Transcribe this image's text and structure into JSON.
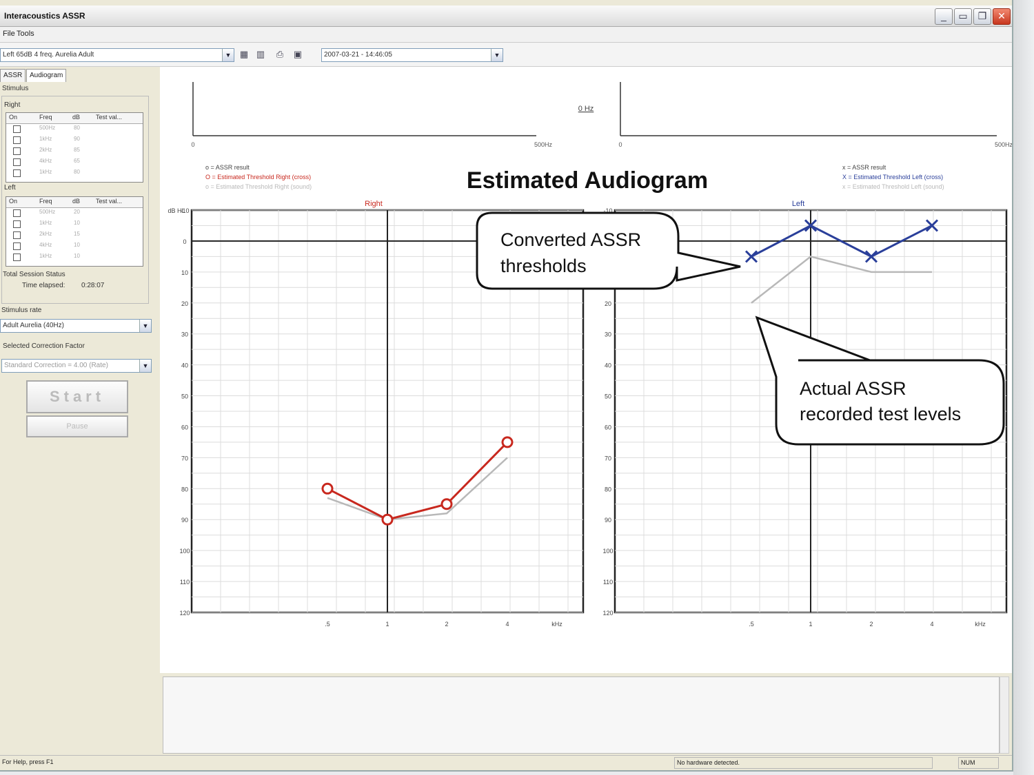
{
  "window": {
    "title": "Interacoustics ASSR",
    "buttons": [
      "minimize",
      "maximize",
      "restore",
      "close"
    ]
  },
  "menu": {
    "file": "File",
    "tools": "Tools"
  },
  "toolbar": {
    "protocol": "Left 65dB 4 freq. Aurelia Adult",
    "session": "2007-03-21 - 14:46:05",
    "icons": [
      "grid-icon",
      "chart-icon",
      "print-icon",
      "save-icon"
    ]
  },
  "tabs": {
    "assr": "ASSR",
    "audiogram": "Audiogram"
  },
  "stimulus": {
    "group_label": "Stimulus",
    "right_label": "Right",
    "left_label": "Left",
    "columns": [
      "On",
      "Freq",
      "dB",
      "Test val..."
    ],
    "right_rows": [
      {
        "freq": "500Hz",
        "db": "80"
      },
      {
        "freq": "1kHz",
        "db": "90"
      },
      {
        "freq": "2kHz",
        "db": "85"
      },
      {
        "freq": "4kHz",
        "db": "65"
      },
      {
        "freq": "1kHz",
        "db": "80"
      }
    ],
    "left_rows": [
      {
        "freq": "500Hz",
        "db": "20"
      },
      {
        "freq": "1kHz",
        "db": "10"
      },
      {
        "freq": "2kHz",
        "db": "15"
      },
      {
        "freq": "4kHz",
        "db": "10"
      },
      {
        "freq": "1kHz",
        "db": "10"
      }
    ]
  },
  "session_status": {
    "label": "Total Session Status",
    "time_label": "Time elapsed:",
    "time_value": "0:28:07"
  },
  "stimulus_rate": {
    "label": "Stimulus rate",
    "value": "Adult Aurelia (40Hz)"
  },
  "correction": {
    "label": "Selected Correction Factor",
    "value": "Standard Correction = 4.00 (Rate)"
  },
  "buttons": {
    "start": "Start",
    "pause": "Pause"
  },
  "status": {
    "help": "For Help, press F1",
    "hardware": "No hardware detected.",
    "mode": "NUM"
  },
  "top_plots": {
    "center_label": "0 Hz",
    "x_start": "0",
    "x_end": "500Hz"
  },
  "colors": {
    "right": "#c8281e",
    "left": "#2a3f9a",
    "gray": "#b8b8b8",
    "grid": "#dcdcdc"
  },
  "callouts": {
    "converted": [
      "Converted ASSR",
      "thresholds"
    ],
    "actual": [
      "Actual ASSR",
      "recorded test levels"
    ]
  },
  "chart_data": {
    "type": "line",
    "title": "Estimated Audiogram",
    "xlabel": "kHz",
    "ylabel": "dB HL",
    "ylim": [
      -10,
      120
    ],
    "y_reversed": true,
    "y_ticks": [
      -10,
      0,
      10,
      20,
      30,
      40,
      50,
      60,
      70,
      80,
      90,
      100,
      110,
      120
    ],
    "x": [
      0.5,
      1,
      2,
      4
    ],
    "x_tick_labels": [
      ".5",
      "1",
      "2",
      "4"
    ],
    "panels": [
      {
        "label": "Right",
        "legend": [
          "o = ASSR result",
          "O = Estimated Threshold Right (cross)",
          "o = Estimated Threshold Right (sound)"
        ],
        "series": [
          {
            "name": "Estimated Threshold",
            "values": [
              80,
              90,
              85,
              65
            ]
          },
          {
            "name": "ASSR result",
            "values": [
              83,
              90,
              88,
              70
            ]
          }
        ]
      },
      {
        "label": "Left",
        "legend": [
          "x = ASSR result",
          "X = Estimated Threshold Left (cross)",
          "x = Estimated Threshold Left (sound)"
        ],
        "series": [
          {
            "name": "Estimated Threshold",
            "values": [
              5,
              -5,
              5,
              -5
            ]
          },
          {
            "name": "ASSR result",
            "values": [
              20,
              5,
              10,
              10
            ]
          }
        ]
      }
    ]
  }
}
